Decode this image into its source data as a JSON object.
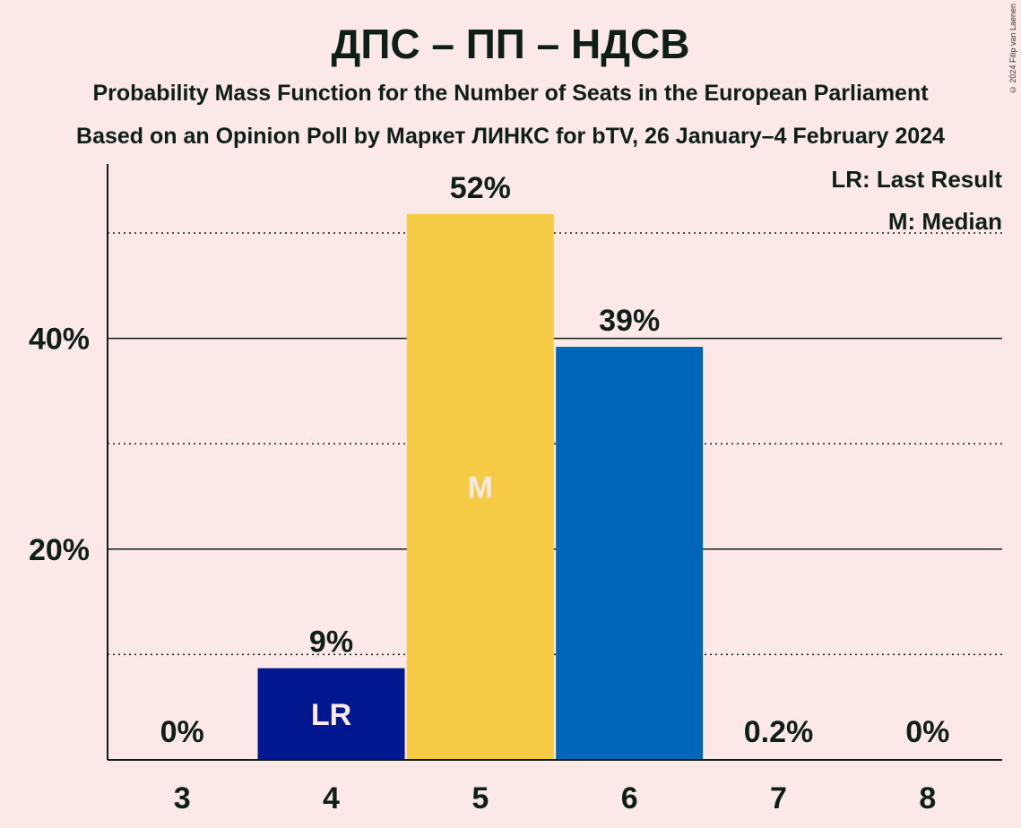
{
  "title": "ДПС – ПП – НДСВ",
  "subtitle": "Probability Mass Function for the Number of Seats in the European Parliament",
  "subtitle2": "Based on an Opinion Poll by Маркет ЛИНКС for bTV, 26 January–4 February 2024",
  "copyright": "© 2024 Filip van Laenen",
  "legend": {
    "last_result": "LR: Last Result",
    "median": "M: Median"
  },
  "chart_data": {
    "type": "bar",
    "categories": [
      "3",
      "4",
      "5",
      "6",
      "7",
      "8"
    ],
    "values": [
      0,
      8.7,
      51.8,
      39.2,
      0.2,
      0
    ],
    "data_labels": [
      "0%",
      "9%",
      "52%",
      "39%",
      "0.2%",
      "0%"
    ],
    "bar_colors": [
      "#6a1b9a",
      "#00188f",
      "#f5cb45",
      "#0066b8",
      "#6a1b9a",
      "#6a1b9a"
    ],
    "bar_markers": [
      "",
      "LR",
      "M",
      "",
      "",
      ""
    ],
    "marker_colors": [
      "",
      "#fde8e8",
      "#fde8e8",
      "",
      "",
      ""
    ],
    "y_ticks": [
      20,
      40
    ],
    "y_tick_labels": [
      "20%",
      "40%"
    ],
    "minor_grid": [
      10,
      30,
      50
    ],
    "ylim": [
      0,
      56
    ],
    "grid": true,
    "legend_position": "top-right"
  }
}
